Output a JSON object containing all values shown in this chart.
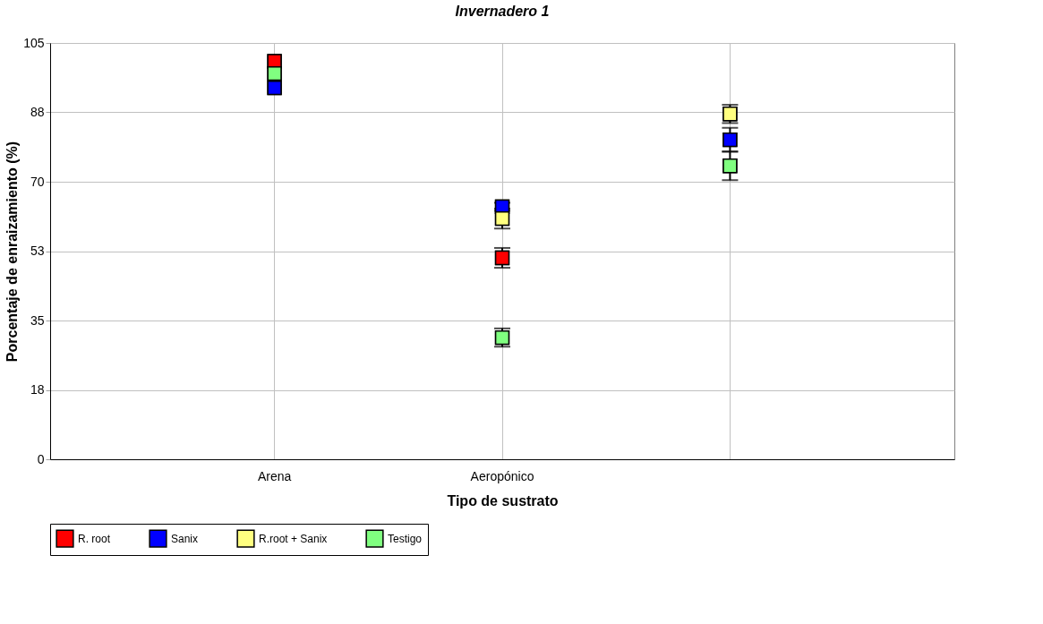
{
  "chart_data": {
    "type": "scatter",
    "title": "Invernadero 1",
    "xlabel": "Tipo de sustrato",
    "ylabel": "Porcentaje de enraizamiento (%)",
    "categories": [
      "Arena",
      "Aeropónico",
      null
    ],
    "series": [
      {
        "name": "R. root",
        "color": "#ff0000",
        "values": [
          100.4,
          50.8,
          null
        ],
        "errors": [
          null,
          2.5,
          null
        ]
      },
      {
        "name": "Sanix",
        "color": "#0000ff",
        "values": [
          93.7,
          63.7,
          80.6
        ],
        "errors": [
          null,
          1,
          3
        ]
      },
      {
        "name": "R.root + Sanix",
        "color": "#ffff80",
        "values": [
          null,
          60.7,
          87.1
        ],
        "errors": [
          null,
          2.5,
          2.3
        ]
      },
      {
        "name": "Testigo",
        "color": "#80ff80",
        "values": [
          97.3,
          30.7,
          74.0
        ],
        "errors": [
          null,
          2.3,
          3.6
        ]
      }
    ],
    "ylim": [
      0,
      105
    ],
    "yticks": [
      0,
      {
        "value": 17.5,
        "label": "18"
      },
      35,
      {
        "value": 52.5,
        "label": "53"
      },
      70,
      {
        "value": 87.5,
        "label": "88"
      },
      105
    ],
    "grid": true,
    "legend": "bottom",
    "marker": "square"
  }
}
